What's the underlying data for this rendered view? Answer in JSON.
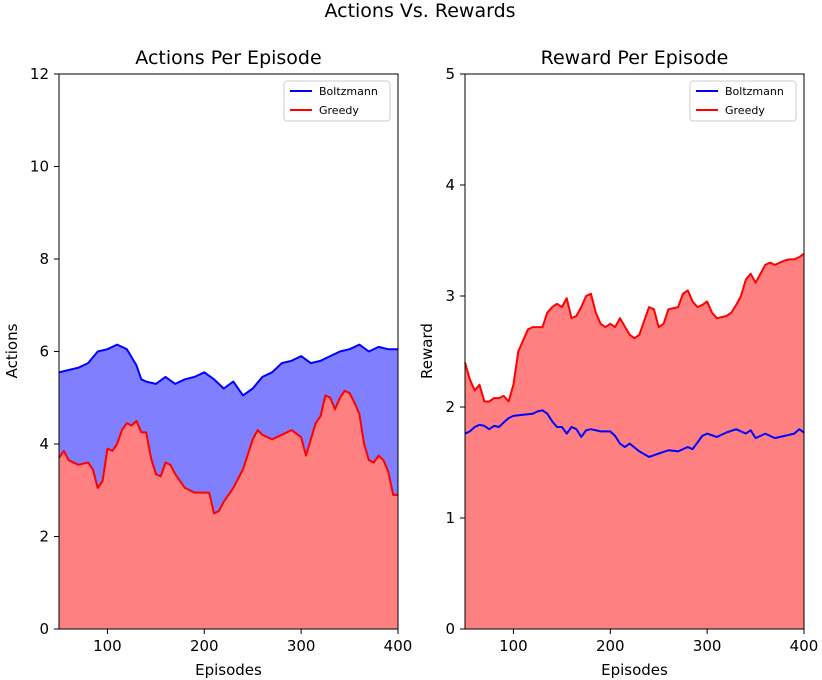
{
  "figure": {
    "title": "Actions Vs. Rewards"
  },
  "colors": {
    "boltzmann_line": "#0000ff",
    "boltzmann_fill": "#8080ff",
    "greedy_line": "#ff0000",
    "greedy_fill": "#ff8080"
  },
  "chart_data": [
    {
      "type": "area",
      "title": "Actions Per Episode",
      "xlabel": "Episodes",
      "ylabel": "Actions",
      "xlim": [
        50,
        400
      ],
      "ylim": [
        0,
        12
      ],
      "xticks": [
        100,
        200,
        300,
        400
      ],
      "yticks": [
        0,
        2,
        4,
        6,
        8,
        10,
        12
      ],
      "legend": {
        "placement": "top-right"
      },
      "grid": false,
      "series": [
        {
          "name": "Boltzmann",
          "x": [
            50,
            60,
            70,
            80,
            90,
            100,
            105,
            110,
            115,
            120,
            130,
            135,
            140,
            150,
            160,
            170,
            180,
            190,
            200,
            210,
            220,
            230,
            240,
            250,
            260,
            270,
            280,
            290,
            300,
            310,
            320,
            330,
            340,
            350,
            360,
            370,
            380,
            390,
            400
          ],
          "y": [
            5.55,
            5.6,
            5.65,
            5.75,
            6.0,
            6.05,
            6.1,
            6.15,
            6.1,
            6.05,
            5.7,
            5.4,
            5.35,
            5.3,
            5.45,
            5.3,
            5.4,
            5.45,
            5.55,
            5.4,
            5.2,
            5.35,
            5.05,
            5.2,
            5.45,
            5.55,
            5.75,
            5.8,
            5.9,
            5.75,
            5.8,
            5.9,
            6.0,
            6.05,
            6.15,
            6.0,
            6.1,
            6.05,
            6.05
          ]
        },
        {
          "name": "Greedy",
          "x": [
            50,
            55,
            60,
            70,
            80,
            85,
            90,
            95,
            100,
            105,
            110,
            115,
            120,
            125,
            130,
            135,
            140,
            145,
            150,
            155,
            160,
            165,
            170,
            180,
            190,
            200,
            205,
            210,
            215,
            220,
            230,
            240,
            250,
            255,
            260,
            270,
            280,
            290,
            300,
            305,
            310,
            315,
            320,
            325,
            330,
            335,
            340,
            345,
            350,
            355,
            360,
            365,
            370,
            375,
            380,
            385,
            390,
            395,
            400
          ],
          "y": [
            3.7,
            3.85,
            3.65,
            3.55,
            3.6,
            3.45,
            3.05,
            3.2,
            3.9,
            3.85,
            4.0,
            4.3,
            4.45,
            4.4,
            4.5,
            4.25,
            4.25,
            3.7,
            3.35,
            3.3,
            3.6,
            3.55,
            3.35,
            3.05,
            2.95,
            2.95,
            2.95,
            2.5,
            2.55,
            2.75,
            3.05,
            3.45,
            4.1,
            4.3,
            4.2,
            4.1,
            4.2,
            4.3,
            4.15,
            3.75,
            4.1,
            4.45,
            4.6,
            5.05,
            5.0,
            4.75,
            5.0,
            5.15,
            5.1,
            4.9,
            4.65,
            4.0,
            3.65,
            3.6,
            3.75,
            3.65,
            3.4,
            2.9,
            2.9
          ]
        }
      ]
    },
    {
      "type": "area",
      "title": "Reward Per Episode",
      "xlabel": "Episodes",
      "ylabel": "Reward",
      "xlim": [
        50,
        400
      ],
      "ylim": [
        0,
        5
      ],
      "xticks": [
        100,
        200,
        300,
        400
      ],
      "yticks": [
        0,
        1,
        2,
        3,
        4,
        5
      ],
      "legend": {
        "placement": "top-right"
      },
      "grid": false,
      "series": [
        {
          "name": "Boltzmann",
          "x": [
            50,
            55,
            60,
            65,
            70,
            75,
            80,
            85,
            90,
            95,
            100,
            110,
            120,
            125,
            130,
            135,
            140,
            145,
            150,
            155,
            160,
            165,
            170,
            175,
            180,
            190,
            200,
            205,
            210,
            215,
            220,
            230,
            240,
            250,
            260,
            270,
            280,
            285,
            290,
            295,
            300,
            310,
            320,
            330,
            340,
            345,
            350,
            360,
            370,
            380,
            390,
            395,
            400
          ],
          "y": [
            1.76,
            1.78,
            1.82,
            1.84,
            1.83,
            1.8,
            1.83,
            1.82,
            1.86,
            1.9,
            1.92,
            1.93,
            1.94,
            1.96,
            1.97,
            1.94,
            1.87,
            1.82,
            1.82,
            1.76,
            1.82,
            1.8,
            1.73,
            1.79,
            1.8,
            1.78,
            1.78,
            1.74,
            1.67,
            1.64,
            1.67,
            1.6,
            1.55,
            1.58,
            1.61,
            1.6,
            1.64,
            1.62,
            1.68,
            1.74,
            1.76,
            1.73,
            1.77,
            1.8,
            1.76,
            1.79,
            1.72,
            1.76,
            1.72,
            1.74,
            1.76,
            1.8,
            1.77
          ]
        },
        {
          "name": "Greedy",
          "x": [
            50,
            55,
            60,
            65,
            70,
            75,
            80,
            85,
            90,
            95,
            100,
            105,
            110,
            115,
            120,
            125,
            130,
            135,
            140,
            145,
            150,
            155,
            160,
            165,
            170,
            175,
            180,
            185,
            190,
            195,
            200,
            205,
            210,
            220,
            225,
            230,
            240,
            245,
            250,
            255,
            260,
            270,
            275,
            280,
            285,
            290,
            295,
            300,
            305,
            310,
            320,
            325,
            330,
            335,
            340,
            345,
            350,
            360,
            365,
            370,
            380,
            385,
            390,
            395,
            400
          ],
          "y": [
            2.4,
            2.25,
            2.15,
            2.2,
            2.05,
            2.05,
            2.08,
            2.08,
            2.1,
            2.05,
            2.2,
            2.5,
            2.6,
            2.7,
            2.72,
            2.72,
            2.72,
            2.85,
            2.9,
            2.93,
            2.9,
            2.98,
            2.8,
            2.82,
            2.9,
            3.0,
            3.02,
            2.85,
            2.75,
            2.72,
            2.75,
            2.72,
            2.8,
            2.65,
            2.62,
            2.65,
            2.9,
            2.88,
            2.72,
            2.75,
            2.88,
            2.9,
            3.02,
            3.05,
            2.95,
            2.9,
            2.92,
            2.95,
            2.85,
            2.8,
            2.82,
            2.85,
            2.92,
            3.0,
            3.15,
            3.2,
            3.12,
            3.28,
            3.3,
            3.28,
            3.32,
            3.33,
            3.33,
            3.35,
            3.38
          ]
        }
      ]
    }
  ]
}
